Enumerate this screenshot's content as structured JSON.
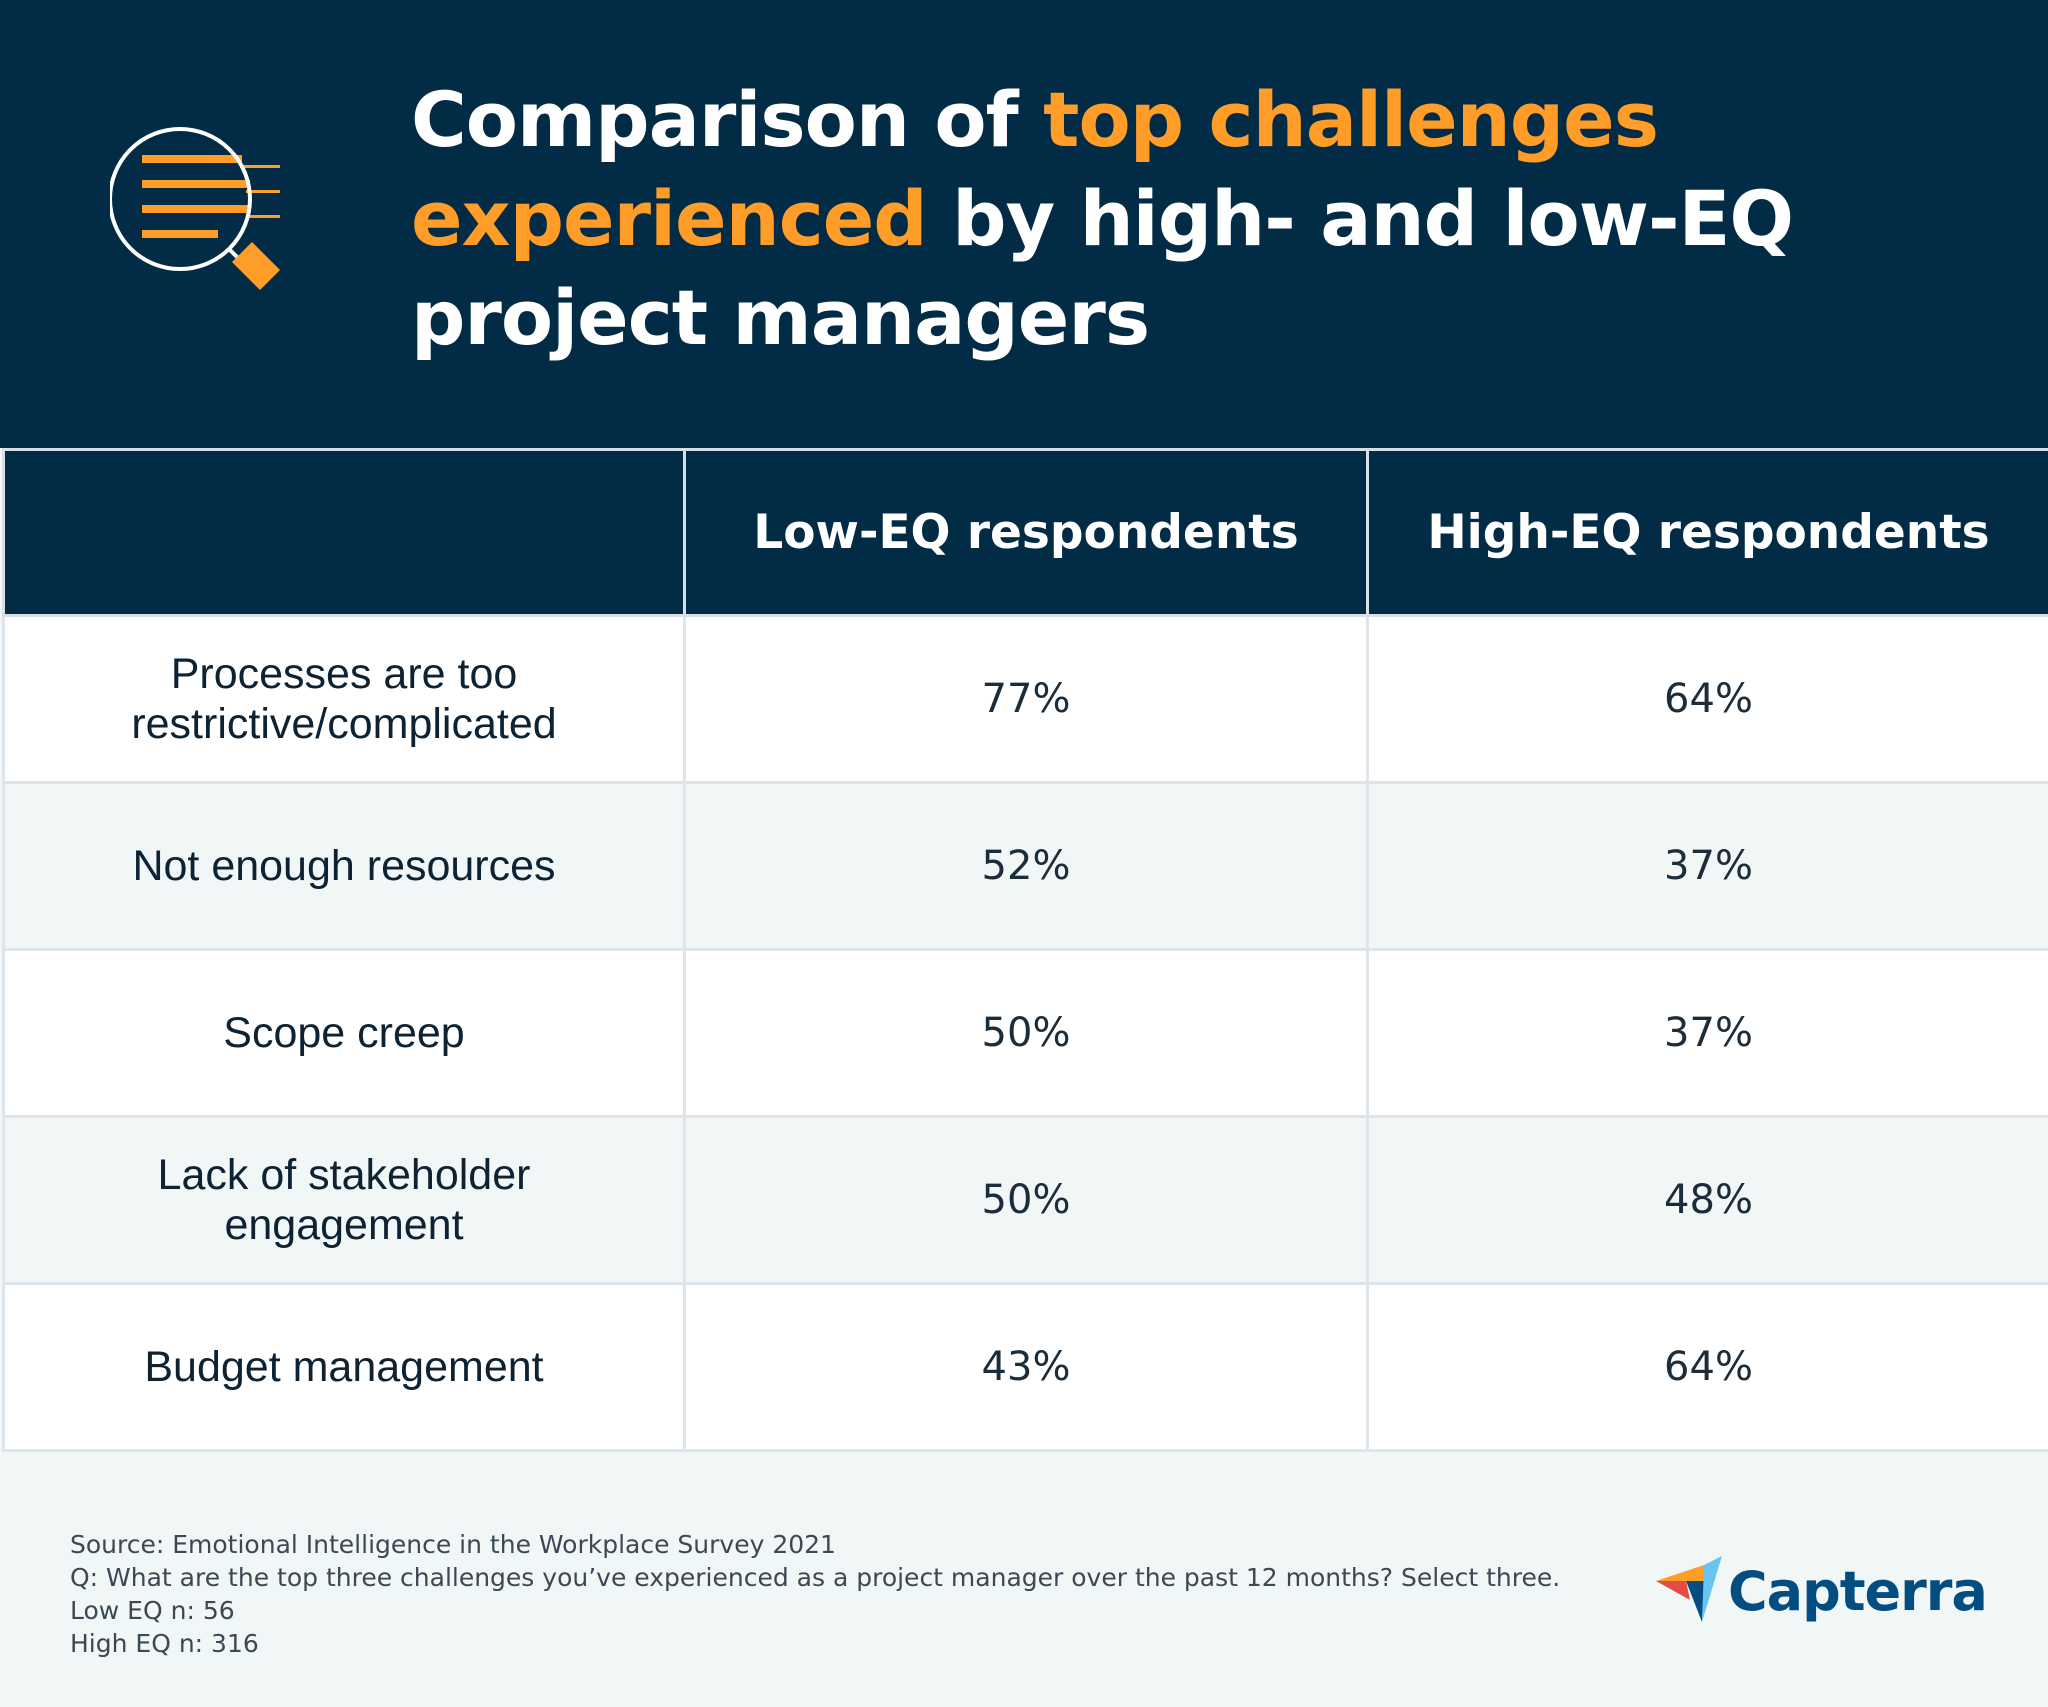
{
  "header": {
    "title_part1": "Comparison of ",
    "title_highlight": "top challenges experienced",
    "title_part2": " by high- and low-EQ project managers",
    "icon": "magnifying-glass-document-icon",
    "colors": {
      "background": "#022c45",
      "accent": "#ff9d28"
    }
  },
  "table": {
    "columns": [
      "",
      "Low-EQ respondents",
      "High-EQ respondents"
    ],
    "rows": [
      {
        "label": "Processes are too restrictive/complicated",
        "low": "77%",
        "high": "64%"
      },
      {
        "label": "Not enough resources",
        "low": "52%",
        "high": "37%"
      },
      {
        "label": "Scope creep",
        "low": "50%",
        "high": "37%"
      },
      {
        "label": "Lack of stakeholder engagement",
        "low": "50%",
        "high": "48%"
      },
      {
        "label": "Budget management",
        "low": "43%",
        "high": "64%"
      }
    ]
  },
  "footer": {
    "source": "Source: Emotional Intelligence in the Workplace Survey 2021",
    "question": "Q: What are the top three challenges you’ve experienced as a project manager over the past 12 months? Select three.",
    "low_n": "Low EQ n: 56",
    "high_n": "High EQ n: 316"
  },
  "logo": {
    "text": "Capterra",
    "icon": "capterra-arrow-icon"
  }
}
